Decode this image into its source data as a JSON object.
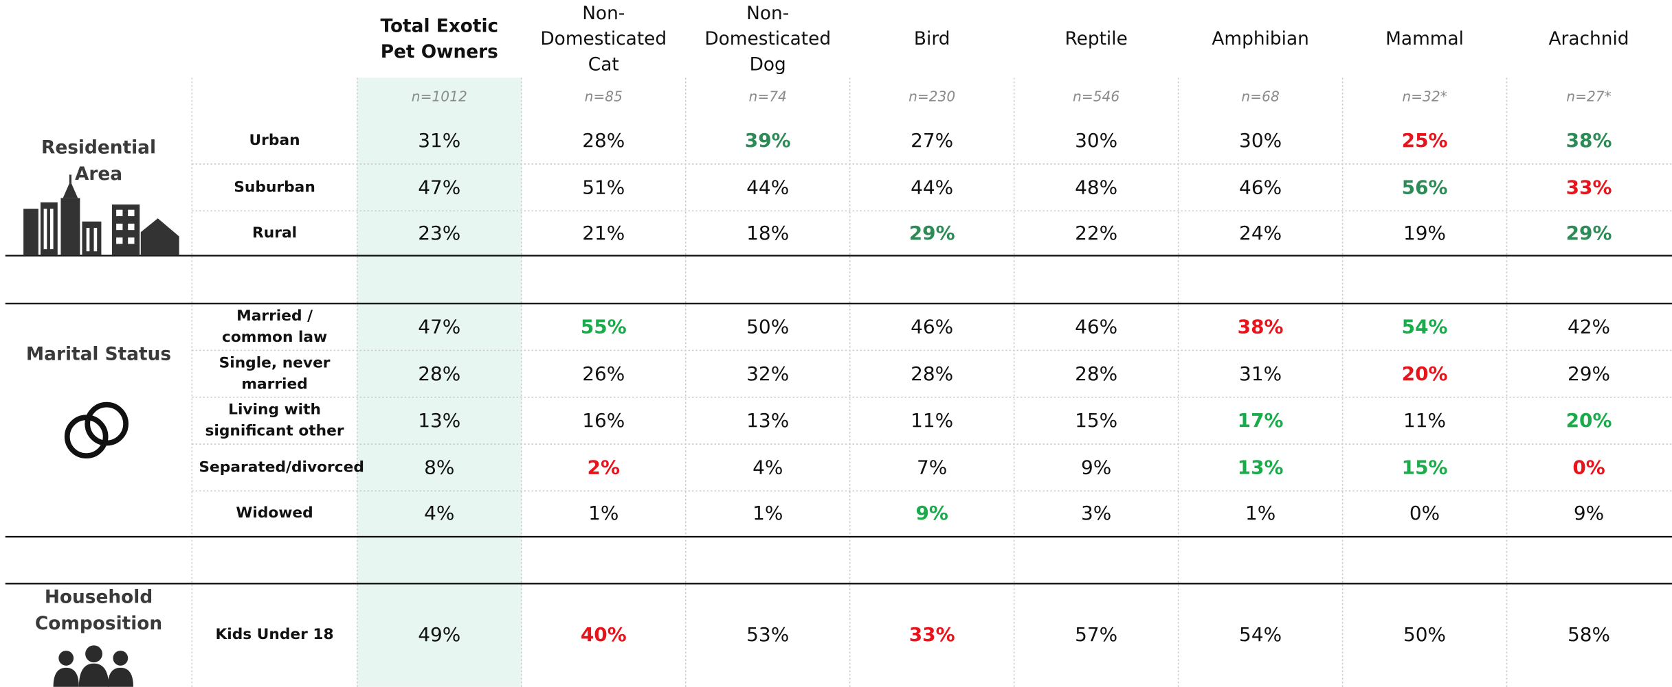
{
  "table": {
    "columns": [
      "Total Exotic Pet Owners",
      "Non-Domesticated Cat",
      "Non-Domesticated Dog",
      "Bird",
      "Reptile",
      "Amphibian",
      "Mammal",
      "Arachnid"
    ],
    "sample_sizes": [
      "n=1012",
      "n=85",
      "n=74",
      "n=230",
      "n=546",
      "n=68",
      "n=32*",
      "n=27*"
    ],
    "sections": [
      {
        "label": "Residential Area",
        "rows": [
          {
            "label": "Urban",
            "cells": [
              "31%",
              "28%",
              {
                "text": "39%",
                "color": "#2e8b57"
              },
              "27%",
              "30%",
              "30%",
              {
                "text": "25%",
                "color": "#e8141c"
              },
              {
                "text": "38%",
                "color": "#2e8b57"
              }
            ]
          },
          {
            "label": "Suburban",
            "cells": [
              "47%",
              "51%",
              "44%",
              "44%",
              "48%",
              "46%",
              {
                "text": "56%",
                "color": "#2e8b57"
              },
              {
                "text": "33%",
                "color": "#e8141c"
              }
            ]
          },
          {
            "label": "Rural",
            "cells": [
              "23%",
              "21%",
              "18%",
              {
                "text": "29%",
                "color": "#2e8b57"
              },
              "22%",
              "24%",
              "19%",
              {
                "text": "29%",
                "color": "#2e8b57"
              }
            ]
          }
        ]
      },
      {
        "label": "Marital Status",
        "rows": [
          {
            "label": "Married / common law",
            "cells": [
              "47%",
              {
                "text": "55%",
                "color": "#1aab4b"
              },
              "50%",
              "46%",
              "46%",
              {
                "text": "38%",
                "color": "#e8141c"
              },
              {
                "text": "54%",
                "color": "#1aab4b"
              },
              "42%"
            ]
          },
          {
            "label": "Single, never married",
            "cells": [
              "28%",
              "26%",
              "32%",
              "28%",
              "28%",
              "31%",
              {
                "text": "20%",
                "color": "#e8141c"
              },
              "29%"
            ]
          },
          {
            "label": "Living with significant other",
            "cells": [
              "13%",
              "16%",
              "13%",
              "11%",
              "15%",
              {
                "text": "17%",
                "color": "#1aab4b"
              },
              "11%",
              {
                "text": "20%",
                "color": "#1aab4b"
              }
            ]
          },
          {
            "label": "Separated/divorced",
            "cells": [
              "8%",
              {
                "text": "2%",
                "color": "#e8141c"
              },
              "4%",
              "7%",
              "9%",
              {
                "text": "13%",
                "color": "#1aab4b"
              },
              {
                "text": "15%",
                "color": "#1aab4b"
              },
              {
                "text": "0%",
                "color": "#e8141c"
              }
            ]
          },
          {
            "label": "Widowed",
            "cells": [
              "4%",
              "1%",
              "1%",
              {
                "text": "9%",
                "color": "#1aab4b"
              },
              "3%",
              "1%",
              "0%",
              "9%"
            ]
          }
        ]
      },
      {
        "label": "Household Composition",
        "rows": [
          {
            "label": "Kids Under 18",
            "cells": [
              "49%",
              {
                "text": "40%",
                "color": "#e8141c"
              },
              "53%",
              {
                "text": "33%",
                "color": "#e8141c"
              },
              "57%",
              "54%",
              "50%",
              "58%"
            ]
          }
        ]
      }
    ]
  }
}
